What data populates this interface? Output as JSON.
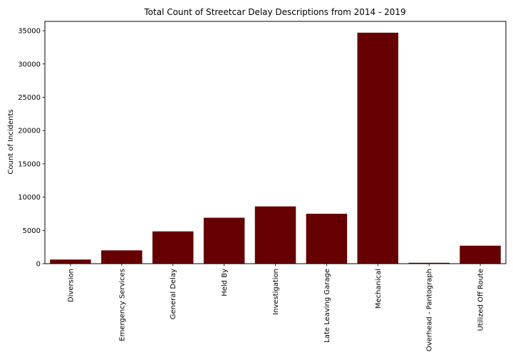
{
  "chart_data": {
    "type": "bar",
    "title": "Total Count of Streetcar Delay Descriptions from 2014 - 2019",
    "xlabel": "",
    "ylabel": "Count of Incidents",
    "categories": [
      "Diversion",
      "Emergency Services",
      "General Delay",
      "Held By",
      "Investigation",
      "Late Leaving Garage",
      "Mechanical",
      "Overhead - Pantograph",
      "Utilized Off Route"
    ],
    "values": [
      620,
      2000,
      4850,
      6900,
      8600,
      7500,
      34700,
      130,
      2700
    ],
    "ylim": [
      0,
      36400
    ],
    "yticks": [
      0,
      5000,
      10000,
      15000,
      20000,
      25000,
      30000,
      35000
    ],
    "yticklabels": [
      "0",
      "5000",
      "10000",
      "15000",
      "20000",
      "25000",
      "30000",
      "35000"
    ],
    "bar_color": "#660000",
    "grid": false,
    "legend": "none"
  }
}
